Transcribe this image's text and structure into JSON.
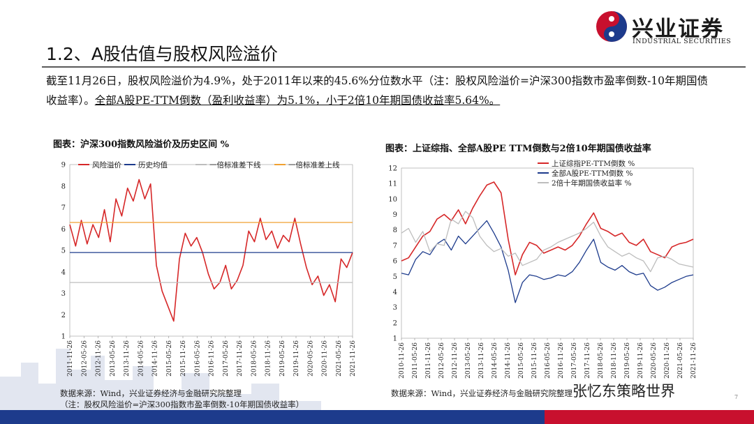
{
  "brand": {
    "name": "兴业证券",
    "sub": "INDUSTRIAL SECURITIES",
    "colors": {
      "red": "#c8102e",
      "navy": "#1d3b8c"
    }
  },
  "title": "1.2、A股估值与股权风险溢价",
  "paragraph": {
    "part1": "截至11月26日，股权风险溢价为4.9%，处于2011年以来的45.6%分位数水平（注：股权风险溢价=沪深300指数市盈率倒数-10年期国债收益率）。",
    "part2": "全部A股PE-TTM倒数（盈利收益率）为5.1%，小于2倍10年期国债收益率5.64%。"
  },
  "chart_data": [
    {
      "type": "line",
      "title": "图表：沪深300指数风险溢价及历史区间 %",
      "ylim": [
        1,
        9
      ],
      "yticks": [
        1,
        2,
        3,
        4,
        5,
        6,
        7,
        8,
        9
      ],
      "xticks": [
        "2011-11-26",
        "2012-05-26",
        "2012-11-26",
        "2013-05-26",
        "2013-11-26",
        "2014-05-26",
        "2014-11-26",
        "2015-05-26",
        "2015-11-26",
        "2016-05-26",
        "2016-11-26",
        "2017-05-26",
        "2017-11-26",
        "2018-05-26",
        "2018-11-26",
        "2019-05-26",
        "2019-11-26",
        "2020-05-26",
        "2020-11-26",
        "2021-05-26",
        "2021-11-26"
      ],
      "legend": "top",
      "grid": false,
      "series": [
        {
          "name": "风险溢价",
          "color": "#d62728",
          "values": [
            6.2,
            5.2,
            6.4,
            5.3,
            6.2,
            5.6,
            6.9,
            5.4,
            7.4,
            6.6,
            7.9,
            7.3,
            8.3,
            7.4,
            8.1,
            4.3,
            3.1,
            2.4,
            1.7,
            4.6,
            5.8,
            5.2,
            5.6,
            4.9,
            3.9,
            3.2,
            3.5,
            4.3,
            3.2,
            3.6,
            4.3,
            5.9,
            5.4,
            6.5,
            5.5,
            5.9,
            5.1,
            5.7,
            5.4,
            6.5,
            5.3,
            4.2,
            3.4,
            3.8,
            2.9,
            3.4,
            2.6,
            4.6,
            4.2,
            4.9
          ]
        },
        {
          "name": "历史均值",
          "color": "#1d3b8c",
          "values": [
            4.9,
            4.9
          ]
        },
        {
          "name": "一倍标准差下线",
          "color": "#bdbdbd",
          "values": [
            3.5,
            3.5
          ]
        },
        {
          "name": "一倍标准差上线",
          "color": "#f0a030",
          "values": [
            6.3,
            6.3
          ]
        }
      ]
    },
    {
      "type": "line",
      "title": "图表：上证综指、全部A股PE TTM倒数与2倍10年期国债收益率",
      "ylim": [
        1,
        12
      ],
      "yticks": [
        1,
        2,
        3,
        4,
        5,
        6,
        7,
        8,
        9,
        10,
        11,
        12
      ],
      "xticks": [
        "2010-11-26",
        "2011-05-26",
        "2011-11-26",
        "2012-05-26",
        "2012-11-26",
        "2013-05-26",
        "2013-11-26",
        "2014-05-26",
        "2014-11-26",
        "2015-05-26",
        "2015-11-26",
        "2016-05-26",
        "2016-11-26",
        "2017-05-26",
        "2017-11-26",
        "2018-05-26",
        "2018-11-26",
        "2019-05-26",
        "2019-11-26",
        "2020-05-26",
        "2020-11-26",
        "2021-05-26",
        "2021-11-26"
      ],
      "legend": "top-right",
      "grid": false,
      "series": [
        {
          "name": "上证综指PE-TTM倒数 %",
          "color": "#d62728",
          "values": [
            6.0,
            6.2,
            6.9,
            7.6,
            7.9,
            8.7,
            9.0,
            8.6,
            9.3,
            8.4,
            9.4,
            10.2,
            10.9,
            11.1,
            10.4,
            7.4,
            5.1,
            6.4,
            7.2,
            7.0,
            6.5,
            6.7,
            6.9,
            6.7,
            7.0,
            7.6,
            8.4,
            9.1,
            8.1,
            7.9,
            7.6,
            7.8,
            7.2,
            7.0,
            7.4,
            6.6,
            6.4,
            6.2,
            6.9,
            7.1,
            7.2,
            7.4
          ]
        },
        {
          "name": "全部A股PE-TTM倒数 %",
          "color": "#1d3b8c",
          "values": [
            5.2,
            5.1,
            6.1,
            6.6,
            6.4,
            7.1,
            7.4,
            6.7,
            7.6,
            7.1,
            7.6,
            8.1,
            8.6,
            7.8,
            6.9,
            5.4,
            3.3,
            4.6,
            5.1,
            5.0,
            4.8,
            4.9,
            5.1,
            5.0,
            5.3,
            5.9,
            6.7,
            7.4,
            5.9,
            5.6,
            5.4,
            5.7,
            5.3,
            5.1,
            5.2,
            4.4,
            4.1,
            4.3,
            4.6,
            4.8,
            5.0,
            5.1
          ]
        },
        {
          "name": "2倍十年期国债收益率 %",
          "color": "#bdbdbd",
          "values": [
            7.8,
            8.1,
            7.2,
            7.9,
            6.6,
            7.1,
            7.0,
            8.7,
            8.4,
            9.2,
            8.8,
            7.6,
            7.0,
            6.6,
            6.8,
            6.3,
            6.5,
            5.7,
            5.9,
            6.1,
            6.7,
            6.9,
            7.2,
            7.4,
            7.6,
            7.8,
            8.1,
            8.5,
            7.6,
            6.9,
            6.6,
            6.3,
            6.5,
            6.2,
            6.0,
            5.3,
            6.2,
            6.3,
            6.1,
            5.8,
            5.7,
            5.6
          ]
        }
      ]
    }
  ],
  "source1": "数据来源：Wind，兴业证券经济与金融研究院整理",
  "source1_note": "（注：股权风险溢价=沪深300指数市盈率倒数-10年期国债收益率）",
  "source2": "数据来源：Wind，兴业证券经济与金融研究院整理",
  "watermark": "张忆东策略世界",
  "page_number": "7"
}
